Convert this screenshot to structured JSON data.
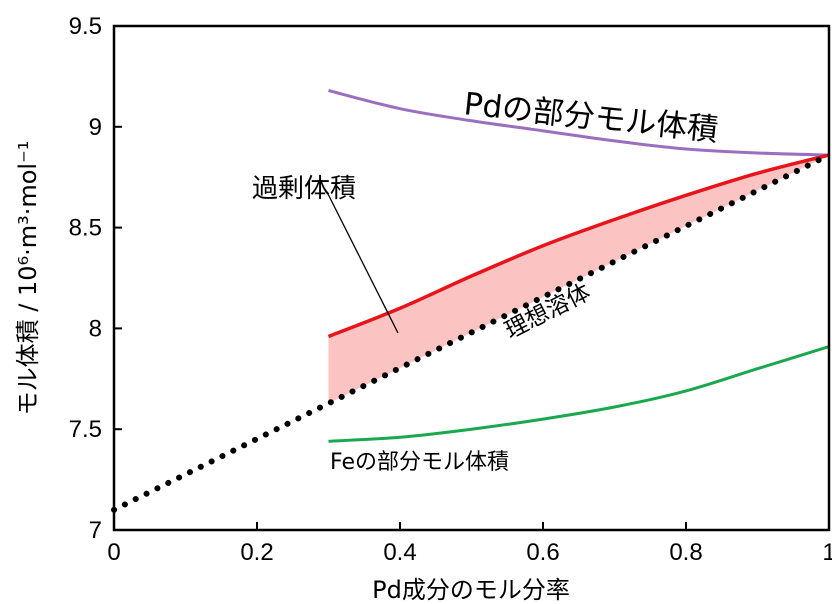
{
  "chart_data": {
    "type": "line",
    "xlabel": "Pd成分のモル分率",
    "ylabel": "モル体積 / 10⁶·m³·mol⁻¹",
    "xlim": [
      0,
      1
    ],
    "ylim": [
      7,
      9.5
    ],
    "xticks": [
      "0",
      "0.2",
      "0.4",
      "0.6",
      "0.8",
      "1"
    ],
    "yticks": [
      "7",
      "7.5",
      "8",
      "8.5",
      "9",
      "9.5"
    ],
    "grid": false,
    "legend": "none",
    "series": [
      {
        "name": "Pdの部分モル体積",
        "color": "#9b6fbf",
        "style": "solid",
        "x": [
          0.3,
          0.4,
          0.5,
          0.6,
          0.7,
          0.8,
          0.9,
          1.0
        ],
        "y": [
          9.18,
          9.09,
          9.03,
          8.98,
          8.93,
          8.89,
          8.87,
          8.86
        ]
      },
      {
        "name": "過剰体積",
        "color": "#e8141b",
        "style": "solid",
        "x": [
          0.3,
          0.4,
          0.5,
          0.6,
          0.7,
          0.8,
          0.9,
          1.0
        ],
        "y": [
          7.96,
          8.1,
          8.26,
          8.41,
          8.54,
          8.66,
          8.77,
          8.86
        ]
      },
      {
        "name": "理想溶体",
        "color": "#000000",
        "style": "dotted",
        "x": [
          0,
          1
        ],
        "y": [
          7.1,
          8.86
        ]
      },
      {
        "name": "Feの部分モル体積",
        "color": "#1aa84f",
        "style": "solid",
        "x": [
          0.3,
          0.4,
          0.5,
          0.6,
          0.7,
          0.8,
          0.9,
          1.0
        ],
        "y": [
          7.44,
          7.46,
          7.5,
          7.55,
          7.61,
          7.69,
          7.8,
          7.91
        ]
      }
    ],
    "fill_between": {
      "lower": "理想溶体",
      "upper": "過剰体積",
      "x_from": 0.3,
      "x_to": 1.0,
      "color": "#fcc3c3"
    },
    "annotations": {
      "pd_partial": "Pdの部分モル体積",
      "excess": "過剰体積",
      "ideal": "理想溶体",
      "fe_partial": "Feの部分モル体積"
    }
  }
}
